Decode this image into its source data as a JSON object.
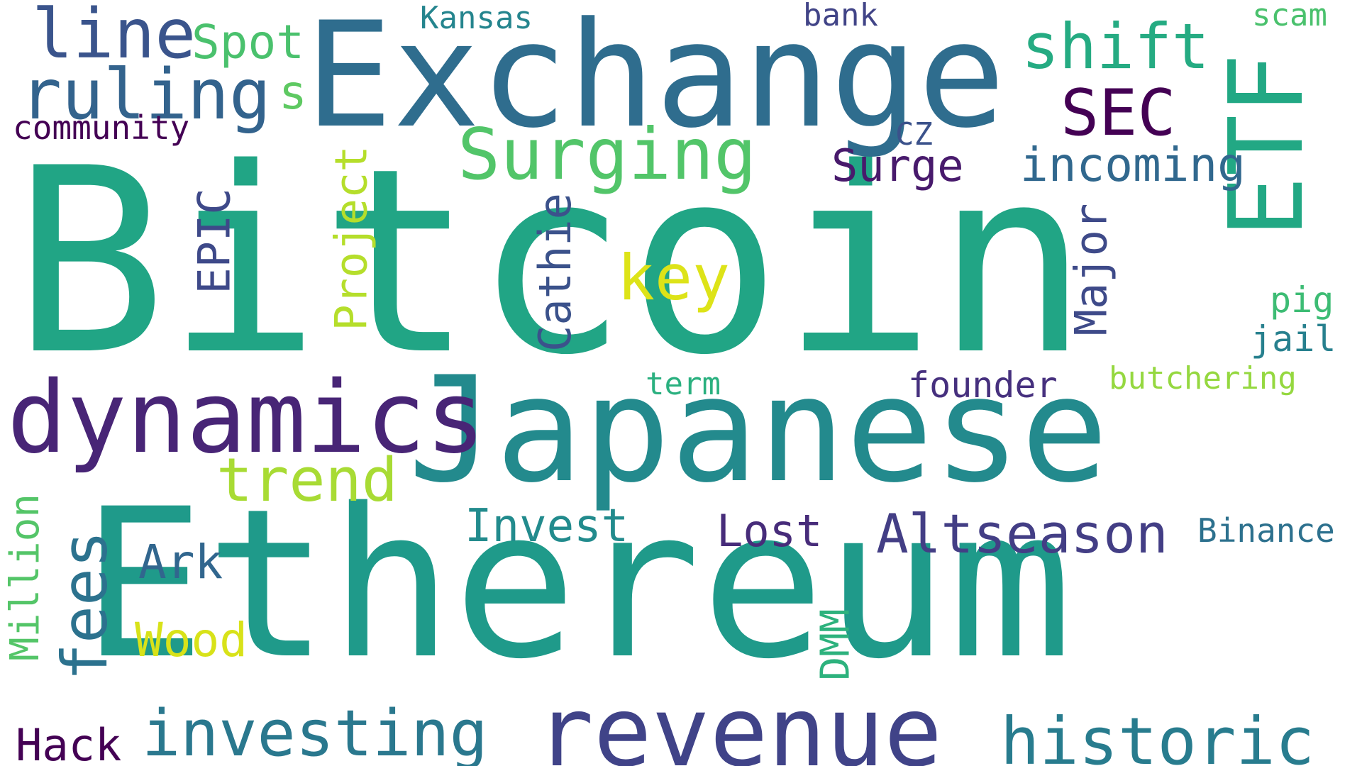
{
  "words": [
    {
      "text": "Bitcoin",
      "color": "#21a585",
      "orientation": "horizontal"
    },
    {
      "text": "Ethereum",
      "color": "#1f9a8a",
      "orientation": "horizontal"
    },
    {
      "text": "Japanese",
      "color": "#238a8d",
      "orientation": "horizontal"
    },
    {
      "text": "Exchange",
      "color": "#2f6d8e",
      "orientation": "horizontal"
    },
    {
      "text": "ETF",
      "color": "#22a884",
      "orientation": "vertical"
    },
    {
      "text": "dynamics",
      "color": "#482576",
      "orientation": "horizontal"
    },
    {
      "text": "revenue",
      "color": "#404388",
      "orientation": "horizontal"
    },
    {
      "text": "Surging",
      "color": "#52c569",
      "orientation": "horizontal"
    },
    {
      "text": "ruling",
      "color": "#33638d",
      "orientation": "horizontal"
    },
    {
      "text": "line",
      "color": "#3a548c",
      "orientation": "horizontal"
    },
    {
      "text": "Spot",
      "color": "#4ac16d",
      "orientation": "horizontal"
    },
    {
      "text": "s",
      "color": "#5ec962",
      "orientation": "horizontal"
    },
    {
      "text": "shift",
      "color": "#25ab82",
      "orientation": "horizontal"
    },
    {
      "text": "SEC",
      "color": "#440154",
      "orientation": "horizontal"
    },
    {
      "text": "historic",
      "color": "#287c8e",
      "orientation": "horizontal"
    },
    {
      "text": "investing",
      "color": "#2a788e",
      "orientation": "horizontal"
    },
    {
      "text": "Altseason",
      "color": "#433e85",
      "orientation": "horizontal"
    },
    {
      "text": "fees",
      "color": "#2c728e",
      "orientation": "vertical"
    },
    {
      "text": "trend",
      "color": "#a8db34",
      "orientation": "horizontal"
    },
    {
      "text": "key",
      "color": "#dde318",
      "orientation": "horizontal"
    },
    {
      "text": "incoming",
      "color": "#31688e",
      "orientation": "horizontal"
    },
    {
      "text": "Surge",
      "color": "#481a6c",
      "orientation": "horizontal"
    },
    {
      "text": "Cathie",
      "color": "#3b528b",
      "orientation": "vertical"
    },
    {
      "text": "Project",
      "color": "#b5de2b",
      "orientation": "vertical"
    },
    {
      "text": "Major",
      "color": "#3e4a89",
      "orientation": "vertical"
    },
    {
      "text": "EPIC",
      "color": "#3e4989",
      "orientation": "vertical"
    },
    {
      "text": "Invest",
      "color": "#228b8d",
      "orientation": "horizontal"
    },
    {
      "text": "Lost",
      "color": "#472c7a",
      "orientation": "horizontal"
    },
    {
      "text": "Ark",
      "color": "#31668e",
      "orientation": "horizontal"
    },
    {
      "text": "Wood",
      "color": "#d8e219",
      "orientation": "horizontal"
    },
    {
      "text": "Million",
      "color": "#54c568",
      "orientation": "vertical"
    },
    {
      "text": "Hack",
      "color": "#440154",
      "orientation": "horizontal"
    },
    {
      "text": "DMM",
      "color": "#2db27d",
      "orientation": "vertical"
    },
    {
      "text": "Binance",
      "color": "#2d718e",
      "orientation": "horizontal"
    },
    {
      "text": "community",
      "color": "#440154",
      "orientation": "horizontal"
    },
    {
      "text": "Kansas",
      "color": "#25858e",
      "orientation": "horizontal"
    },
    {
      "text": "bank",
      "color": "#414487",
      "orientation": "horizontal"
    },
    {
      "text": "scam",
      "color": "#4ac16d",
      "orientation": "horizontal"
    },
    {
      "text": "CZ",
      "color": "#3b528b",
      "orientation": "horizontal"
    },
    {
      "text": "term",
      "color": "#2ab07f",
      "orientation": "horizontal"
    },
    {
      "text": "founder",
      "color": "#46307e",
      "orientation": "horizontal"
    },
    {
      "text": "butchering",
      "color": "#95d840",
      "orientation": "horizontal"
    },
    {
      "text": "pig",
      "color": "#3dbc74",
      "orientation": "horizontal"
    },
    {
      "text": "jail",
      "color": "#27808e",
      "orientation": "horizontal"
    }
  ]
}
